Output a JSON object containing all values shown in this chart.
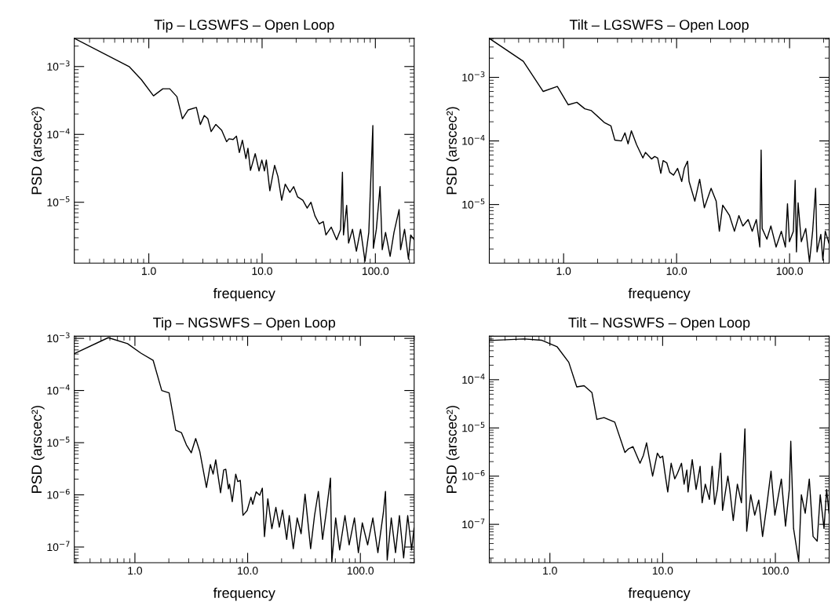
{
  "chart_data": [
    {
      "type": "line",
      "title": "Tip – LGSWFS – Open Loop",
      "xlabel": "frequency",
      "ylabel": "PSD (arscec²)",
      "log": "xy",
      "color": "#000000",
      "xlim": [
        0.22,
        220
      ],
      "ylim": [
        1.27e-06,
        0.0026
      ],
      "xticks": [
        {
          "value": 1,
          "label": "1.0"
        },
        {
          "value": 10,
          "label": "10.0"
        },
        {
          "value": 100,
          "label": "100.0"
        }
      ],
      "yticks": [
        {
          "value": 0.001,
          "label": "10$^{−3}$"
        },
        {
          "value": 0.0001,
          "label": "10$^{−4}$"
        },
        {
          "value": 1e-05,
          "label": "10$^{−5}$"
        }
      ],
      "x": [
        0.22,
        0.67,
        0.86,
        1.1,
        1.33,
        1.53,
        1.77,
        1.98,
        2.23,
        2.63,
        2.85,
        3.09,
        3.32,
        3.55,
        3.9,
        4.4,
        4.86,
        5.1,
        5.55,
        5.94,
        6.3,
        6.7,
        7.2,
        7.5,
        7.9,
        8.7,
        9.4,
        9.95,
        10.5,
        10.9,
        11.7,
        12.9,
        13.8,
        14.9,
        16.0,
        17.6,
        19.0,
        20.6,
        22.9,
        25.0,
        27.0,
        29.3,
        31.9,
        34.7,
        36.6,
        40.8,
        45.5,
        49.3,
        51.2,
        52.3,
        55.8,
        58,
        62.8,
        68,
        74,
        81,
        87.5,
        95,
        96,
        102,
        110,
        115,
        123,
        135,
        146,
        162,
        167,
        181,
        196,
        205,
        220
      ],
      "values": [
        0.0026,
        0.001,
        0.00064,
        0.00037,
        0.00047,
        0.00047,
        0.00036,
        0.00017,
        0.00023,
        0.00025,
        0.00014,
        0.00019,
        0.00017,
        0.00011,
        0.00014,
        0.000115,
        7.8e-05,
        8.6e-05,
        8.4e-05,
        9.4e-05,
        5.4e-05,
        8.2e-05,
        4.4e-05,
        6.25e-05,
        2.95e-05,
        5.2e-05,
        2.9e-05,
        4.2e-05,
        2.9e-05,
        4.2e-05,
        1.48e-05,
        3.5e-05,
        2.4e-05,
        1.07e-05,
        1.85e-05,
        1.4e-05,
        1.7e-05,
        1.2e-05,
        1.07e-05,
        8.2e-06,
        1e-05,
        6.3e-06,
        4.8e-06,
        5.2e-06,
        3.3e-06,
        4.3e-06,
        2.8e-06,
        3.96e-06,
        2.77e-05,
        3.3e-06,
        9e-06,
        2.5e-06,
        4e-06,
        1.9e-06,
        4e-06,
        1.35e-06,
        3.6e-06,
        0.000135,
        2.1e-06,
        4e-06,
        1.7e-05,
        2e-06,
        3.6e-06,
        1.6e-06,
        3.6e-06,
        7.8e-06,
        2e-06,
        4e-06,
        1.45e-06,
        3.3e-06,
        2.8e-06
      ]
    },
    {
      "type": "line",
      "title": "Tilt – LGSWFS – Open Loop",
      "xlabel": "frequency",
      "ylabel": "PSD (arscec²)",
      "log": "xy",
      "color": "#000000",
      "xlim": [
        0.22,
        224
      ],
      "ylim": [
        1.2e-06,
        0.0041
      ],
      "xticks": [
        {
          "value": 1,
          "label": "1.0"
        },
        {
          "value": 10,
          "label": "10.0"
        },
        {
          "value": 100,
          "label": "100.0"
        }
      ],
      "yticks": [
        {
          "value": 0.001,
          "label": "10$^{−3}$"
        },
        {
          "value": 0.0001,
          "label": "10$^{−4}$"
        },
        {
          "value": 1e-05,
          "label": "10$^{−5}$"
        }
      ],
      "x": [
        0.22,
        0.44,
        0.66,
        0.88,
        1.1,
        1.31,
        1.54,
        1.76,
        2.29,
        2.62,
        2.84,
        3.25,
        3.49,
        3.72,
        3.98,
        4.43,
        5.03,
        5.3,
        6.0,
        6.4,
        6.8,
        7.25,
        7.6,
        8.2,
        8.7,
        9.4,
        10.2,
        11.1,
        11.7,
        12.5,
        12.9,
        14.5,
        16.0,
        17.6,
        20.2,
        22.4,
        23.9,
        25.6,
        29.4,
        32.5,
        35.6,
        38.6,
        43,
        46.7,
        50.8,
        54.5,
        56,
        57.2,
        63,
        68.3,
        76,
        84.5,
        91.8,
        95.8,
        99.6,
        108,
        112,
        115,
        119,
        127,
        139,
        150,
        160,
        170,
        175,
        189,
        197,
        207,
        224
      ],
      "values": [
        0.0041,
        0.00179,
        0.0006,
        0.00072,
        0.00037,
        0.000405,
        0.00032,
        0.0003,
        0.000195,
        0.000173,
        0.000103,
        0.0001,
        0.000134,
        9e-05,
        0.000144,
        8.7e-05,
        5.4e-05,
        6.6e-05,
        5.2e-05,
        5.7e-05,
        5.4e-05,
        3.1e-05,
        4.9e-05,
        4.5e-05,
        3.2e-05,
        2.9e-05,
        3.7e-05,
        2.3e-05,
        3.7e-05,
        4.8e-05,
        2.3e-05,
        1.13e-05,
        2.5e-05,
        8.9e-06,
        1.8e-05,
        1.13e-05,
        3.8e-06,
        9.8e-06,
        6.7e-06,
        3.8e-06,
        6.7e-06,
        4.6e-06,
        5.8e-06,
        3.8e-06,
        5.8e-06,
        2.15e-06,
        7.2e-05,
        4.2e-06,
        2.85e-06,
        4.6e-06,
        2.15e-06,
        3.8e-06,
        2.15e-06,
        1.03e-05,
        2.6e-06,
        3.8e-06,
        2.4e-05,
        1.8e-06,
        1.06e-05,
        2.6e-06,
        4.2e-06,
        1.25e-06,
        3.8e-06,
        1.8e-05,
        1.8e-06,
        3.4e-06,
        1.33e-06,
        3.8e-06,
        2.4e-06
      ]
    },
    {
      "type": "line",
      "title": "Tip – NGSWFS – Open Loop",
      "xlabel": "frequency",
      "ylabel": "PSD (arscec²)",
      "log": "xy",
      "color": "#000000",
      "xlim": [
        0.29,
        300
      ],
      "ylim": [
        5e-08,
        0.0011
      ],
      "xticks": [
        {
          "value": 1,
          "label": "1.0"
        },
        {
          "value": 10,
          "label": "10.0"
        },
        {
          "value": 100,
          "label": "100.0"
        }
      ],
      "yticks": [
        {
          "value": 0.001,
          "label": "10$^{−3}$"
        },
        {
          "value": 0.0001,
          "label": "10$^{−4}$"
        },
        {
          "value": 1e-05,
          "label": "10$^{−5}$"
        },
        {
          "value": 1e-06,
          "label": "10$^{−6}$"
        },
        {
          "value": 1e-07,
          "label": "10$^{−7}$"
        }
      ],
      "x": [
        0.29,
        0.58,
        0.86,
        1.13,
        1.45,
        1.73,
        2.01,
        2.3,
        2.59,
        2.86,
        3.16,
        3.46,
        3.76,
        4.31,
        4.67,
        4.94,
        5.21,
        5.75,
        6.13,
        6.4,
        6.75,
        6.9,
        7.3,
        7.84,
        8.17,
        8.6,
        9.1,
        9.9,
        10.7,
        11.1,
        11.9,
        12.8,
        13.5,
        14.1,
        15.1,
        16.4,
        17.8,
        19.1,
        20.4,
        22.2,
        23.4,
        25.4,
        27.5,
        29.8,
        32.3,
        36.2,
        39.2,
        42.4,
        46.2,
        50.1,
        54.3,
        55.8,
        60.4,
        65.5,
        73,
        79.5,
        88.6,
        96,
        104,
        116,
        129,
        143,
        160,
        167,
        173,
        188,
        205,
        222,
        242,
        263,
        285,
        299
      ],
      "values": [
        0.00051,
        0.00103,
        0.00079,
        0.00052,
        0.00038,
        0.0001,
        9e-05,
        1.74e-05,
        1.55e-05,
        9.1e-06,
        6.4e-06,
        1.2e-05,
        6.8e-06,
        1.39e-06,
        3.8e-06,
        2.5e-06,
        4.7e-06,
        1.1e-06,
        3e-06,
        3.1e-06,
        1.3e-06,
        1.6e-06,
        7.4e-07,
        2.5e-06,
        1.8e-06,
        1.9e-06,
        4.05e-07,
        5e-07,
        9e-07,
        6.6e-07,
        1.14e-06,
        9.8e-07,
        1.34e-06,
        1.58e-07,
        8.4e-07,
        2.25e-07,
        5.75e-07,
        2.4e-07,
        5.1e-07,
        1.4e-07,
        4e-07,
        9.3e-08,
        3.6e-07,
        1.8e-07,
        1.03e-06,
        9.3e-08,
        4e-07,
        1.16e-06,
        1.4e-07,
        5.1e-07,
        2.1e-06,
        5.2e-08,
        3.6e-07,
        8.8e-08,
        4e-07,
        1.1e-07,
        3.6e-07,
        7.8e-08,
        2.9e-07,
        1.1e-07,
        3.6e-07,
        7.8e-08,
        4.6e-07,
        1.16e-06,
        5.6e-08,
        3.6e-07,
        7.8e-08,
        4e-07,
        6.2e-08,
        4e-07,
        8.8e-08,
        2.3e-07
      ]
    },
    {
      "type": "line",
      "title": "Tilt – NGSWFS – Open Loop",
      "xlabel": "frequency",
      "ylabel": "PSD (arscec²)",
      "log": "xy",
      "color": "#000000",
      "xlim": [
        0.29,
        300
      ],
      "ylim": [
        1.6e-08,
        0.0008
      ],
      "xticks": [
        {
          "value": 1,
          "label": "1.0"
        },
        {
          "value": 10,
          "label": "10.0"
        },
        {
          "value": 100,
          "label": "100.0"
        }
      ],
      "yticks": [
        {
          "value": 0.0001,
          "label": "10$^{−4}$"
        },
        {
          "value": 1e-05,
          "label": "10$^{−5}$"
        },
        {
          "value": 1e-06,
          "label": "10$^{−6}$"
        },
        {
          "value": 1e-07,
          "label": "10$^{−7}$"
        }
      ],
      "x": [
        0.29,
        0.59,
        0.84,
        1.16,
        1.47,
        1.73,
        2.01,
        2.36,
        2.61,
        3.02,
        3.76,
        4.63,
        4.95,
        5.45,
        6.3,
        6.75,
        7.2,
        7.6,
        8.15,
        8.98,
        9.5,
        10.0,
        10.5,
        11.1,
        11.9,
        12.8,
        13.5,
        14.7,
        15.5,
        16.4,
        16.8,
        18.3,
        19.8,
        21.5,
        22.4,
        23.9,
        26.0,
        27.5,
        28.9,
        30.6,
        32.7,
        34.0,
        37.9,
        39.4,
        42.3,
        46.0,
        50,
        53.7,
        55.7,
        60.4,
        65.6,
        71.2,
        77,
        84,
        91.5,
        99,
        113,
        123,
        133,
        137,
        145,
        161,
        170,
        184,
        200,
        216,
        235,
        250,
        270,
        285,
        299
      ],
      "values": [
        0.00065,
        0.0007,
        0.00066,
        0.00048,
        0.00023,
        7.1e-05,
        7.5e-05,
        5.4e-05,
        1.5e-05,
        1.64e-05,
        1.32e-05,
        3.1e-06,
        3.65e-06,
        4.1e-06,
        1.85e-06,
        2.7e-06,
        4.9e-06,
        2.4e-06,
        1e-06,
        3e-06,
        2.4e-06,
        2.6e-06,
        1.13e-06,
        4.7e-07,
        1.85e-06,
        8.8e-07,
        1.13e-06,
        1.85e-06,
        6.8e-07,
        1.34e-06,
        4.7e-07,
        2.2e-06,
        5.3e-07,
        1.6e-06,
        2.8e-07,
        6.8e-07,
        3.3e-07,
        1.6e-06,
        2.6e-07,
        5.3e-07,
        3e-06,
        1.95e-07,
        1e-06,
        5.3e-07,
        1.2e-07,
        6.8e-07,
        2.8e-07,
        9.6e-06,
        7.2e-08,
        4.1e-07,
        1.55e-07,
        3.2e-07,
        5.6e-08,
        2.5e-07,
        1.27e-06,
        1.55e-07,
        8.7e-07,
        9.2e-08,
        5.3e-07,
        5.3e-06,
        8.2e-08,
        1.7e-08,
        4.1e-07,
        1.7e-07,
        8.7e-07,
        5.6e-08,
        4.5e-08,
        4.1e-07,
        8.2e-08,
        5.3e-07,
        1.7e-07
      ]
    }
  ]
}
